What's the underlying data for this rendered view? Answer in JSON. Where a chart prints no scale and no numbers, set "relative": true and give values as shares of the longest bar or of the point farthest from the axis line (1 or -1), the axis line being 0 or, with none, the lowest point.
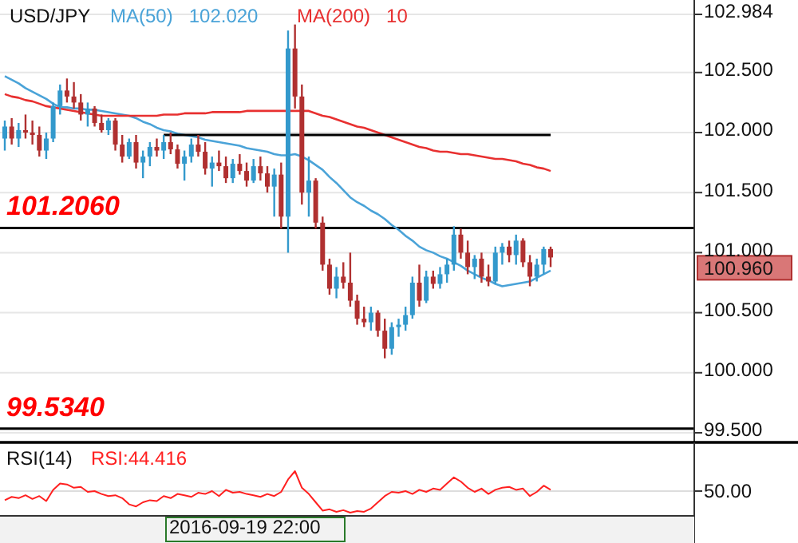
{
  "chart_data": [
    {
      "type": "candlestick",
      "title": "USD/JPY",
      "legend": "top left",
      "grid": "y",
      "tick_labels": "y",
      "categories": [
        null,
        null,
        null,
        null,
        null,
        null,
        null,
        null,
        null,
        null,
        null,
        null,
        null,
        null,
        null,
        null,
        null,
        null,
        null,
        null,
        null,
        null,
        null,
        null,
        null,
        null,
        null,
        null,
        null,
        null,
        null,
        null,
        null,
        null,
        null,
        null,
        null,
        null,
        null,
        null,
        null,
        null,
        null,
        null,
        null,
        null,
        null,
        null,
        null,
        null,
        null,
        null,
        null,
        null,
        null,
        null,
        null,
        null,
        null,
        null,
        null,
        null,
        null,
        null,
        null,
        null,
        null,
        null,
        null,
        null,
        null,
        null,
        null,
        null,
        null,
        null,
        null,
        null,
        null,
        null
      ],
      "ohlc": [
        [
          101.95,
          102.1,
          101.85,
          102.05
        ],
        [
          102.05,
          102.12,
          101.9,
          101.95
        ],
        [
          101.95,
          102.08,
          101.88,
          102.02
        ],
        [
          102.02,
          102.15,
          101.95,
          102.0
        ],
        [
          102.0,
          102.1,
          101.9,
          101.98
        ],
        [
          101.98,
          102.05,
          101.8,
          101.85
        ],
        [
          101.85,
          102.0,
          101.78,
          101.95
        ],
        [
          101.95,
          102.25,
          101.92,
          102.22
        ],
        [
          102.22,
          102.4,
          102.15,
          102.35
        ],
        [
          102.35,
          102.45,
          102.25,
          102.3
        ],
        [
          102.3,
          102.42,
          102.2,
          102.25
        ],
        [
          102.25,
          102.32,
          102.1,
          102.15
        ],
        [
          102.15,
          102.25,
          102.05,
          102.2
        ],
        [
          102.2,
          102.22,
          102.05,
          102.08
        ],
        [
          102.08,
          102.15,
          102.0,
          102.02
        ],
        [
          102.02,
          102.12,
          101.98,
          102.1
        ],
        [
          102.1,
          102.12,
          101.85,
          101.9
        ],
        [
          101.9,
          101.98,
          101.75,
          101.8
        ],
        [
          101.8,
          101.95,
          101.78,
          101.92
        ],
        [
          101.92,
          101.98,
          101.7,
          101.75
        ],
        [
          101.75,
          101.85,
          101.62,
          101.8
        ],
        [
          101.8,
          101.92,
          101.72,
          101.88
        ],
        [
          101.88,
          101.95,
          101.8,
          101.85
        ],
        [
          101.85,
          101.98,
          101.78,
          101.92
        ],
        [
          101.92,
          102.0,
          101.82,
          101.86
        ],
        [
          101.86,
          101.9,
          101.7,
          101.74
        ],
        [
          101.74,
          101.85,
          101.6,
          101.8
        ],
        [
          101.8,
          101.95,
          101.75,
          101.9
        ],
        [
          101.9,
          101.98,
          101.8,
          101.84
        ],
        [
          101.84,
          101.92,
          101.65,
          101.7
        ],
        [
          101.7,
          101.8,
          101.55,
          101.75
        ],
        [
          101.75,
          101.85,
          101.68,
          101.72
        ],
        [
          101.72,
          101.8,
          101.58,
          101.62
        ],
        [
          101.62,
          101.78,
          101.58,
          101.74
        ],
        [
          101.74,
          101.82,
          101.65,
          101.68
        ],
        [
          101.68,
          101.75,
          101.55,
          101.6
        ],
        [
          101.6,
          101.78,
          101.58,
          101.72
        ],
        [
          101.72,
          101.8,
          101.6,
          101.66
        ],
        [
          101.66,
          101.72,
          101.5,
          101.55
        ],
        [
          101.55,
          101.7,
          101.3,
          101.65
        ],
        [
          101.65,
          101.75,
          101.2,
          101.3
        ],
        [
          101.3,
          102.85,
          101.0,
          102.7
        ],
        [
          102.7,
          102.9,
          102.2,
          102.3
        ],
        [
          102.3,
          102.4,
          101.4,
          101.5
        ],
        [
          101.5,
          101.8,
          101.3,
          101.6
        ],
        [
          101.6,
          101.62,
          101.2,
          101.25
        ],
        [
          101.25,
          101.3,
          100.85,
          100.9
        ],
        [
          100.9,
          100.95,
          100.65,
          100.7
        ],
        [
          100.7,
          100.88,
          100.62,
          100.8
        ],
        [
          100.8,
          100.92,
          100.7,
          100.75
        ],
        [
          100.75,
          101.0,
          100.55,
          100.6
        ],
        [
          100.6,
          100.65,
          100.4,
          100.45
        ],
        [
          100.45,
          100.55,
          100.38,
          100.42
        ],
        [
          100.42,
          100.55,
          100.35,
          100.5
        ],
        [
          100.5,
          100.52,
          100.3,
          100.35
        ],
        [
          100.35,
          100.45,
          100.12,
          100.2
        ],
        [
          100.2,
          100.42,
          100.15,
          100.38
        ],
        [
          100.38,
          100.45,
          100.3,
          100.4
        ],
        [
          100.4,
          100.55,
          100.35,
          100.48
        ],
        [
          100.48,
          100.8,
          100.45,
          100.75
        ],
        [
          100.75,
          100.9,
          100.55,
          100.6
        ],
        [
          100.6,
          100.85,
          100.58,
          100.8
        ],
        [
          100.8,
          100.85,
          100.7,
          100.74
        ],
        [
          100.74,
          100.88,
          100.7,
          100.82
        ],
        [
          100.82,
          100.95,
          100.75,
          100.9
        ],
        [
          100.9,
          101.22,
          100.85,
          101.15
        ],
        [
          101.15,
          101.2,
          100.95,
          101.0
        ],
        [
          101.0,
          101.1,
          100.82,
          100.88
        ],
        [
          100.88,
          100.98,
          100.78,
          100.95
        ],
        [
          100.95,
          101.0,
          100.75,
          100.8
        ],
        [
          100.8,
          100.9,
          100.72,
          100.76
        ],
        [
          100.76,
          101.05,
          100.74,
          101.0
        ],
        [
          101.0,
          101.08,
          100.9,
          101.05
        ],
        [
          101.05,
          101.1,
          100.92,
          100.98
        ],
        [
          100.98,
          101.15,
          100.9,
          101.1
        ],
        [
          101.1,
          101.12,
          100.88,
          100.92
        ],
        [
          100.92,
          100.98,
          100.72,
          100.8
        ],
        [
          100.8,
          100.95,
          100.76,
          100.9
        ],
        [
          100.9,
          101.05,
          100.82,
          101.03
        ],
        [
          101.03,
          101.05,
          100.88,
          100.96
        ]
      ],
      "colors": [
        "#3399cc",
        "#b03030",
        "#3399cc",
        "#b03030",
        "#b03030",
        "#b03030",
        "#3399cc",
        "#3399cc",
        "#3399cc",
        "#b03030",
        "#b03030",
        "#b03030",
        "#3399cc",
        "#b03030",
        "#b03030",
        "#3399cc",
        "#b03030",
        "#b03030",
        "#3399cc",
        "#b03030",
        "#3399cc",
        "#3399cc",
        "#b03030",
        "#3399cc",
        "#b03030",
        "#b03030",
        "#3399cc",
        "#3399cc",
        "#b03030",
        "#b03030",
        "#3399cc",
        "#b03030",
        "#b03030",
        "#3399cc",
        "#b03030",
        "#b03030",
        "#3399cc",
        "#b03030",
        "#b03030",
        "#3399cc",
        "#b03030",
        "#3399cc",
        "#b03030",
        "#b03030",
        "#3399cc",
        "#b03030",
        "#b03030",
        "#b03030",
        "#3399cc",
        "#b03030",
        "#b03030",
        "#b03030",
        "#b03030",
        "#3399cc",
        "#b03030",
        "#b03030",
        "#3399cc",
        "#3399cc",
        "#3399cc",
        "#3399cc",
        "#b03030",
        "#3399cc",
        "#b03030",
        "#3399cc",
        "#3399cc",
        "#3399cc",
        "#b03030",
        "#b03030",
        "#3399cc",
        "#b03030",
        "#b03030",
        "#3399cc",
        "#3399cc",
        "#b03030",
        "#3399cc",
        "#b03030",
        "#b03030",
        "#3399cc",
        "#3399cc",
        "#b03030"
      ],
      "series": [
        {
          "type": "line",
          "name": "MA(50)",
          "color": "#4aa3d8",
          "values": [
            102.47,
            102.44,
            102.41,
            102.37,
            102.34,
            102.31,
            102.28,
            102.24,
            102.21,
            102.21,
            102.2,
            102.2,
            102.19,
            102.19,
            102.18,
            102.17,
            102.16,
            102.15,
            102.14,
            102.12,
            102.09,
            102.07,
            102.04,
            102.02,
            102.01,
            101.99,
            101.98,
            101.97,
            101.96,
            101.94,
            101.93,
            101.92,
            101.91,
            101.9,
            101.89,
            101.87,
            101.86,
            101.85,
            101.84,
            101.82,
            101.81,
            101.81,
            101.82,
            101.8,
            101.77,
            101.73,
            101.69,
            101.63,
            101.58,
            101.52,
            101.46,
            101.42,
            101.39,
            101.35,
            101.32,
            101.28,
            101.23,
            101.19,
            101.14,
            101.1,
            101.05,
            101.02,
            101.0,
            100.97,
            100.95,
            100.92,
            100.89,
            100.85,
            100.82,
            100.79,
            100.77,
            100.74,
            100.72,
            100.73,
            100.74,
            100.75,
            100.76,
            100.79,
            100.82,
            100.85
          ]
        },
        {
          "type": "line",
          "name": "MA(200)",
          "color": "#e83030",
          "values": [
            102.32,
            102.3,
            102.29,
            102.27,
            102.26,
            102.24,
            102.22,
            102.21,
            102.2,
            102.19,
            102.18,
            102.17,
            102.16,
            102.15,
            102.14,
            102.14,
            102.14,
            102.14,
            102.14,
            102.14,
            102.14,
            102.14,
            102.14,
            102.15,
            102.15,
            102.15,
            102.16,
            102.16,
            102.16,
            102.16,
            102.17,
            102.17,
            102.17,
            102.17,
            102.17,
            102.18,
            102.18,
            102.18,
            102.18,
            102.18,
            102.18,
            102.18,
            102.18,
            102.18,
            102.18,
            102.16,
            102.14,
            102.13,
            102.11,
            102.09,
            102.07,
            102.05,
            102.04,
            102.02,
            102.0,
            101.98,
            101.96,
            101.94,
            101.92,
            101.9,
            101.88,
            101.87,
            101.85,
            101.84,
            101.84,
            101.83,
            101.82,
            101.82,
            101.81,
            101.8,
            101.79,
            101.78,
            101.78,
            101.77,
            101.76,
            101.74,
            101.73,
            101.71,
            101.7,
            101.68
          ]
        },
        {
          "type": "line",
          "color": "#000000",
          "values": [
            null,
            null,
            null,
            null,
            null,
            null,
            null,
            null,
            null,
            null,
            null,
            null,
            null,
            null,
            null,
            null,
            null,
            null,
            null,
            null,
            null,
            null,
            null,
            101.98,
            101.98,
            101.98,
            101.98,
            101.98,
            101.98,
            101.98,
            101.98,
            101.98,
            101.98,
            101.98,
            101.98,
            101.98,
            101.98,
            101.98,
            101.98,
            101.98,
            101.98,
            101.98,
            101.98,
            101.98,
            101.98,
            101.98,
            101.98,
            101.98,
            101.98,
            101.98,
            101.98,
            101.98,
            101.98,
            101.98,
            101.98,
            101.98,
            101.98,
            101.98,
            101.98,
            101.98,
            101.98,
            101.98,
            101.98,
            101.98,
            101.98,
            101.98,
            101.98,
            101.98,
            101.98,
            101.98,
            101.98,
            101.98,
            101.98,
            101.98,
            101.98,
            101.98,
            101.98,
            101.98,
            101.98,
            101.98
          ]
        }
      ],
      "ylim": [
        99.42,
        102.984
      ],
      "yticks": [
        {
          "value": 102.984,
          "label": "102.984"
        },
        {
          "value": 102.5,
          "label": "102.500"
        },
        {
          "value": 102,
          "label": "102.000"
        },
        {
          "value": 101.5,
          "label": "101.500"
        },
        {
          "value": 101,
          "label": "101.000"
        },
        {
          "value": 100.5,
          "label": "100.500"
        },
        {
          "value": 100,
          "label": "100.000"
        },
        {
          "value": 99.5,
          "label": "99.500"
        }
      ],
      "ref_lines": [
        {
          "axis": "y",
          "value": 101.206,
          "label": "101.2060",
          "color": "#000000"
        },
        {
          "axis": "y",
          "value": 99.534,
          "label": "99.5340",
          "color": "#000000"
        }
      ],
      "annotations": [
        "102.020",
        "10",
        "100.960"
      ]
    },
    {
      "type": "line",
      "title": "RSI(14)",
      "relative": true,
      "legend": "top left",
      "categories": [
        null,
        null,
        null,
        null,
        null,
        null,
        null,
        null,
        null,
        null,
        null,
        null,
        null,
        null,
        null,
        null,
        null,
        null,
        null,
        null,
        null,
        null,
        null,
        null,
        null,
        null,
        null,
        null,
        null,
        null,
        null,
        null,
        null,
        null,
        null,
        null,
        null,
        null,
        null,
        null,
        null,
        null,
        null,
        null,
        null,
        null,
        null,
        null,
        null,
        null,
        null,
        null,
        null,
        null,
        null,
        null,
        null,
        null,
        null,
        null,
        null,
        null,
        null,
        null,
        null,
        null,
        null,
        null,
        null,
        null,
        null,
        null,
        null,
        null,
        null,
        null,
        null,
        null,
        null,
        null
      ],
      "series": [
        {
          "name": "RSI:44.416",
          "color": "#ff2020",
          "values": [
            0.3,
            0.38,
            0.35,
            0.42,
            0.33,
            0.4,
            0.28,
            0.55,
            0.7,
            0.68,
            0.6,
            0.62,
            0.5,
            0.52,
            0.45,
            0.4,
            0.42,
            0.35,
            0.2,
            0.15,
            0.25,
            0.3,
            0.28,
            0.4,
            0.35,
            0.45,
            0.42,
            0.38,
            0.48,
            0.45,
            0.52,
            0.4,
            0.55,
            0.48,
            0.5,
            0.45,
            0.42,
            0.38,
            0.45,
            0.4,
            0.5,
            0.8,
            1.0,
            0.6,
            0.45,
            0.25,
            0.05,
            0.08,
            0.02,
            0.06,
            0.0,
            0.04,
            0.02,
            0.1,
            0.25,
            0.4,
            0.5,
            0.48,
            0.52,
            0.45,
            0.55,
            0.5,
            0.58,
            0.55,
            0.7,
            0.85,
            0.75,
            0.6,
            0.5,
            0.58,
            0.45,
            0.55,
            0.6,
            0.62,
            0.55,
            0.58,
            0.4,
            0.5,
            0.65,
            0.55
          ]
        }
      ],
      "ref_lines": [
        {
          "axis": "y",
          "value": 0.52,
          "color": "#dddddd"
        }
      ],
      "annotations": [
        "50.00",
        "2016-09-19 22:00"
      ]
    }
  ]
}
